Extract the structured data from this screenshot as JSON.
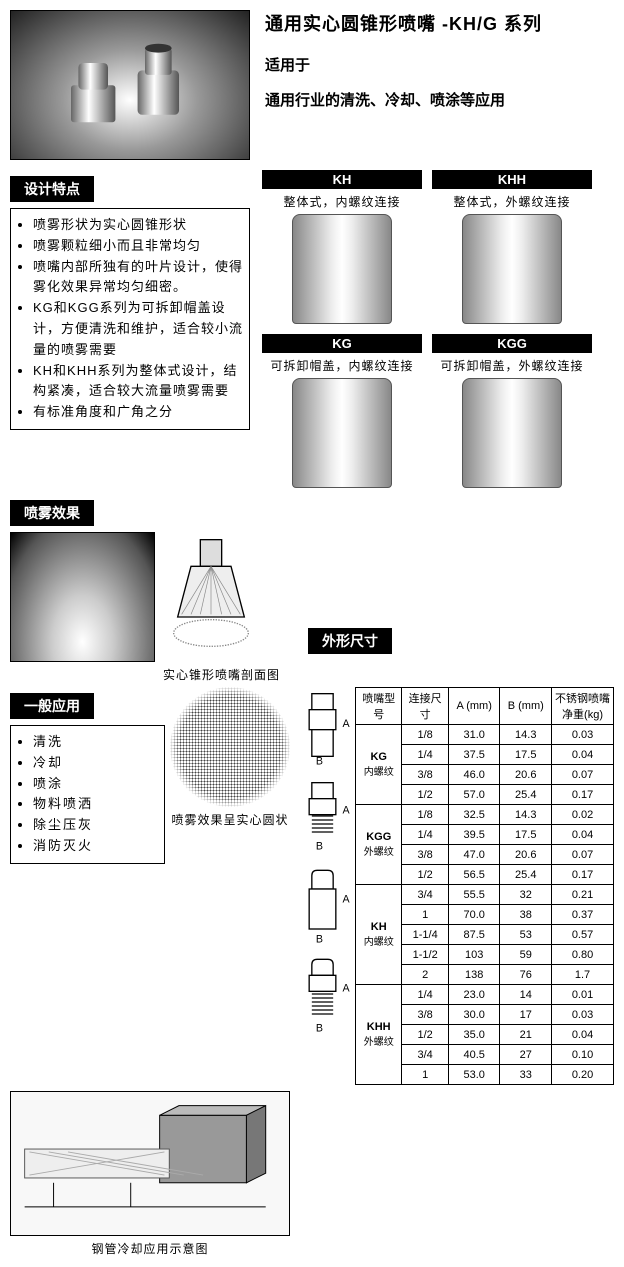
{
  "header": {
    "title": "通用实心圆锥形喷嘴  -KH/G 系列",
    "subtitle1": "适用于",
    "subtitle2": "通用行业的清洗、冷却、喷涂等应用"
  },
  "sections": {
    "design": "设计特点",
    "spray": "喷雾效果",
    "apps": "一般应用",
    "dims": "外形尺寸"
  },
  "design_points": [
    "喷雾形状为实心圆锥形状",
    "喷雾颗粒细小而且非常均匀",
    "喷嘴内部所独有的叶片设计，使得雾化效果异常均匀细密。",
    "KG和KGG系列为可拆卸帽盖设计，方便清洗和维护，适合较小流量的喷雾需要",
    "KH和KHH系列为整体式设计，结构紧凑，适合较大流量喷雾需要",
    "有标准角度和广角之分"
  ],
  "variants": [
    {
      "code": "KH",
      "desc": "整体式，内螺纹连接"
    },
    {
      "code": "KHH",
      "desc": "整体式，外螺纹连接"
    },
    {
      "code": "KG",
      "desc": "可拆卸帽盖，内螺纹连接"
    },
    {
      "code": "KGG",
      "desc": "可拆卸帽盖，外螺纹连接"
    }
  ],
  "captions": {
    "cross_section": "实心锥形喷嘴剖面图",
    "circle": "喷雾效果呈实心圆状",
    "pipe": "钢管冷却应用示意图"
  },
  "applications": [
    "清洗",
    "冷却",
    "喷涂",
    "物料喷洒",
    "除尘压灰",
    "消防灭火"
  ],
  "dim_table": {
    "headers": [
      "喷嘴型号",
      "连接尺寸",
      "A (mm)",
      "B (mm)",
      "不锈钢喷嘴净重(kg)"
    ],
    "groups": [
      {
        "model": "KG",
        "thread": "内螺纹",
        "rows": [
          [
            "1/8",
            "31.0",
            "14.3",
            "0.03"
          ],
          [
            "1/4",
            "37.5",
            "17.5",
            "0.04"
          ],
          [
            "3/8",
            "46.0",
            "20.6",
            "0.07"
          ],
          [
            "1/2",
            "57.0",
            "25.4",
            "0.17"
          ]
        ]
      },
      {
        "model": "KGG",
        "thread": "外螺纹",
        "rows": [
          [
            "1/8",
            "32.5",
            "14.3",
            "0.02"
          ],
          [
            "1/4",
            "39.5",
            "17.5",
            "0.04"
          ],
          [
            "3/8",
            "47.0",
            "20.6",
            "0.07"
          ],
          [
            "1/2",
            "56.5",
            "25.4",
            "0.17"
          ]
        ]
      },
      {
        "model": "KH",
        "thread": "内螺纹",
        "rows": [
          [
            "3/4",
            "55.5",
            "32",
            "0.21"
          ],
          [
            "1",
            "70.0",
            "38",
            "0.37"
          ],
          [
            "1-1/4",
            "87.5",
            "53",
            "0.57"
          ],
          [
            "1-1/2",
            "103",
            "59",
            "0.80"
          ],
          [
            "2",
            "138",
            "76",
            "1.7"
          ]
        ]
      },
      {
        "model": "KHH",
        "thread": "外螺纹",
        "rows": [
          [
            "1/4",
            "23.0",
            "14",
            "0.01"
          ],
          [
            "3/8",
            "30.0",
            "17",
            "0.03"
          ],
          [
            "1/2",
            "35.0",
            "21",
            "0.04"
          ],
          [
            "3/4",
            "40.5",
            "27",
            "0.10"
          ],
          [
            "1",
            "53.0",
            "33",
            "0.20"
          ]
        ]
      }
    ]
  },
  "colors": {
    "label_bg": "#000000",
    "label_fg": "#ffffff",
    "border": "#000000",
    "text": "#000000"
  }
}
